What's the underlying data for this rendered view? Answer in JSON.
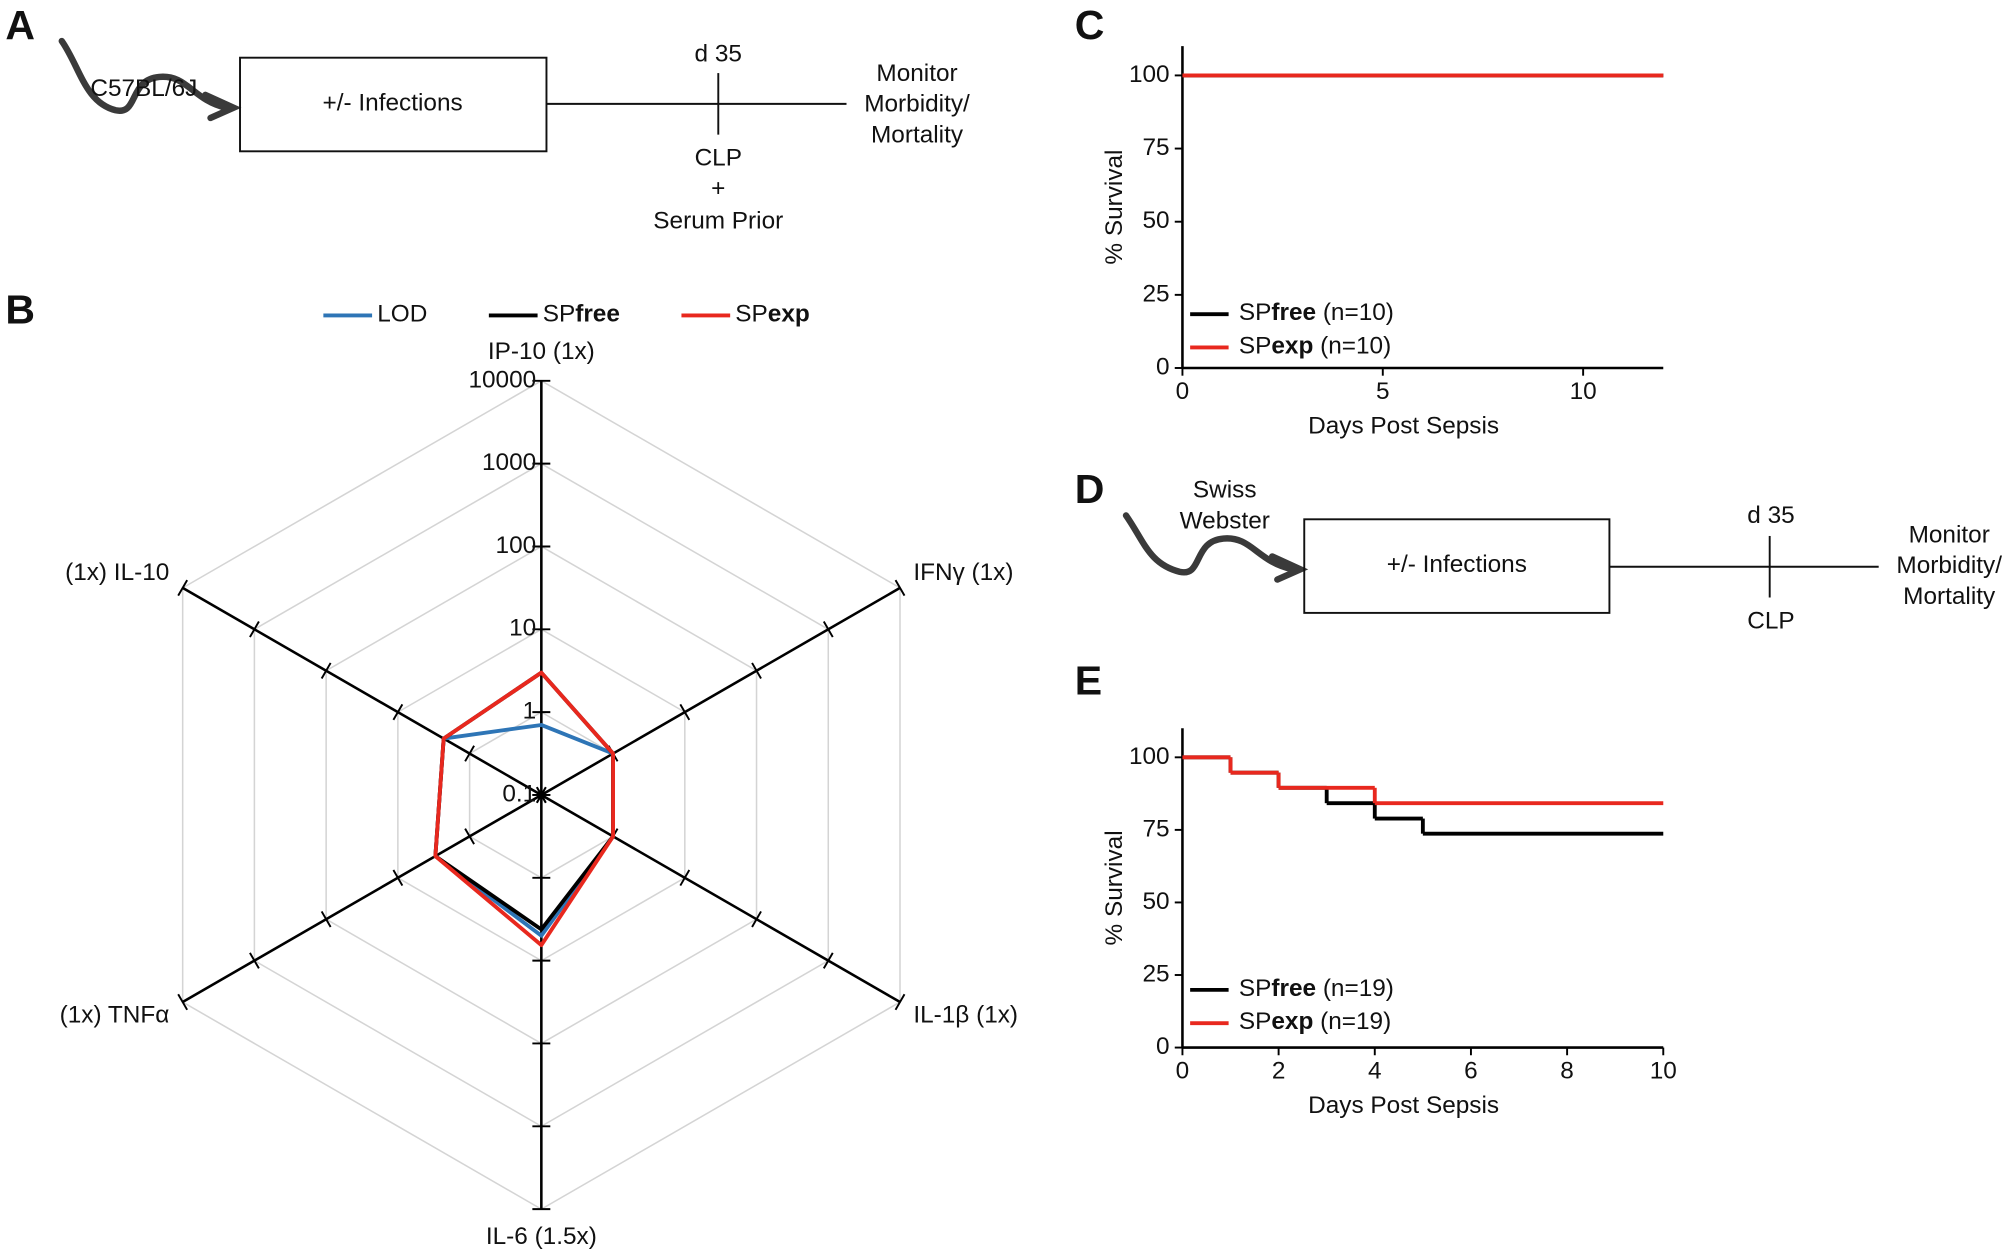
{
  "panel_labels": [
    "A",
    "B",
    "C",
    "D",
    "E"
  ],
  "diagrams": [
    {
      "strain": [
        "C57BL/6J"
      ],
      "strain_color": "#111111",
      "box": "+/- Infections",
      "timepoint": "d 35",
      "below": [
        "CLP",
        "+",
        "Serum Prior"
      ],
      "outcome": [
        "Monitor",
        "Morbidity/",
        "Mortality"
      ]
    },
    {
      "strain": [
        "Swiss",
        "Webster"
      ],
      "strain_color": "#e8281e",
      "box": "+/- Infections",
      "timepoint": "d 35",
      "below": [
        "CLP"
      ],
      "outcome": [
        "Monitor",
        "Morbidity/",
        "Mortality"
      ]
    }
  ],
  "chart_data": [
    {
      "type": "radar",
      "log_scale": true,
      "grid": true,
      "legend": "top",
      "axes": [
        "IP-10 (1x)",
        "IFNγ (1x)",
        "IL-1β (1x)",
        "IL-6 (1.5x)",
        "(1x) TNFα",
        "(1x) IL-10"
      ],
      "rlim": [
        0.1,
        10000
      ],
      "rticks": [
        0.1,
        1,
        10,
        100,
        1000,
        10000
      ],
      "series": [
        {
          "name": [
            "LOD"
          ],
          "color": "#2e75b6",
          "values": [
            0.7,
            1.0,
            1.0,
            5.0,
            3.0,
            2.3
          ]
        },
        {
          "name": [
            "SP",
            "free"
          ],
          "color": "#000000",
          "values": [
            3.0,
            1.0,
            1.0,
            4.2,
            3.0,
            2.3
          ]
        },
        {
          "name": [
            "SP",
            "exp"
          ],
          "color": "#e8281e",
          "values": [
            3.0,
            1.0,
            1.0,
            6.5,
            3.0,
            2.3
          ]
        }
      ]
    },
    {
      "type": "line",
      "step": "post",
      "xlabel": "Days Post Sepsis",
      "ylabel": "% Survival",
      "xlim": [
        0,
        12
      ],
      "xticks": [
        0,
        5,
        10
      ],
      "ylim": [
        0,
        110
      ],
      "yticks": [
        0,
        25,
        50,
        75,
        100
      ],
      "legend": "lower left",
      "series": [
        {
          "name": [
            "SP",
            "free",
            " (n=10)"
          ],
          "color": "#000000",
          "x": [
            0,
            12
          ],
          "values": [
            100,
            100
          ]
        },
        {
          "name": [
            "SP",
            "exp",
            " (n=10)"
          ],
          "color": "#e8281e",
          "x": [
            0,
            12
          ],
          "values": [
            100,
            100
          ]
        }
      ]
    },
    {
      "type": "line",
      "step": "post",
      "xlabel": "Days Post Sepsis",
      "ylabel": "% Survival",
      "xlim": [
        0,
        10
      ],
      "xticks": [
        0,
        2,
        4,
        6,
        8,
        10
      ],
      "ylim": [
        0,
        110
      ],
      "yticks": [
        0,
        25,
        50,
        75,
        100
      ],
      "legend": "lower left",
      "series": [
        {
          "name": [
            "SP",
            "free",
            " (n=19)"
          ],
          "color": "#000000",
          "x": [
            0,
            1,
            2,
            3,
            4,
            5,
            10
          ],
          "values": [
            100,
            94.7,
            89.5,
            84.2,
            78.9,
            73.7,
            73.7
          ]
        },
        {
          "name": [
            "SP",
            "exp",
            " (n=19)"
          ],
          "color": "#e8281e",
          "x": [
            0,
            1,
            2,
            4,
            10
          ],
          "values": [
            100,
            94.7,
            89.5,
            84.2,
            84.2
          ]
        }
      ]
    }
  ]
}
